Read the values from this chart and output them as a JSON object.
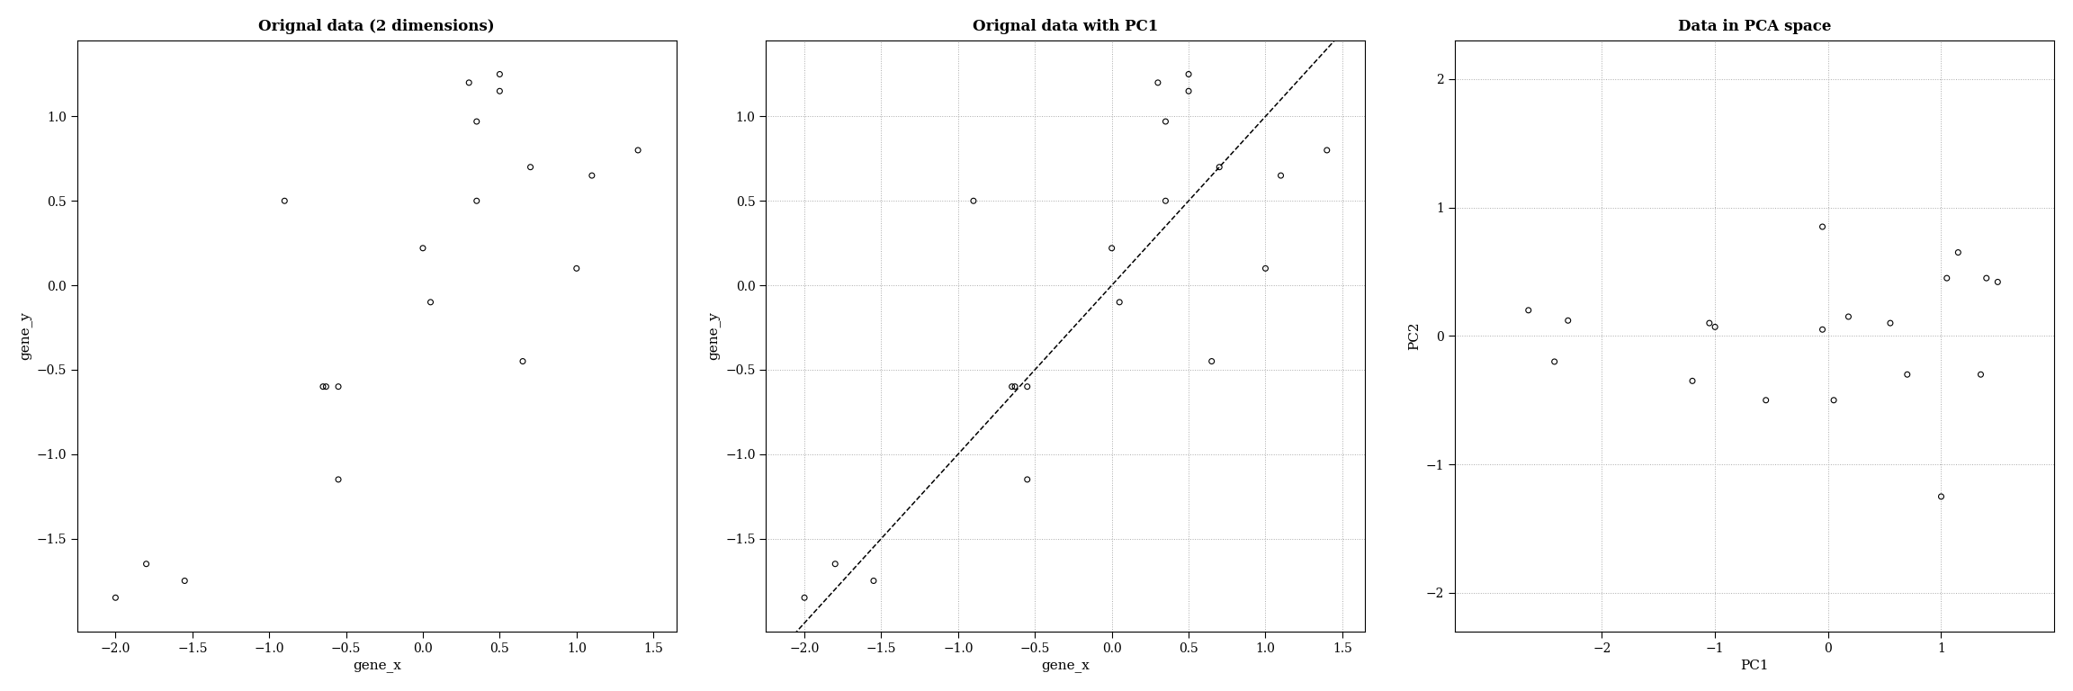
{
  "plot1": {
    "title": "Orignal data (2 dimensions)",
    "xlabel": "gene_x",
    "ylabel": "gene_y",
    "x": [
      -2.0,
      -1.8,
      -1.55,
      -0.9,
      -0.65,
      -0.63,
      -0.55,
      -0.55,
      0.0,
      0.05,
      0.3,
      0.35,
      0.35,
      0.5,
      0.5,
      0.65,
      0.7,
      1.0,
      1.1,
      1.4
    ],
    "y": [
      -1.85,
      -1.65,
      -1.75,
      0.5,
      -0.6,
      -0.6,
      -0.6,
      -1.15,
      0.22,
      -0.1,
      1.2,
      0.97,
      0.5,
      1.25,
      1.15,
      -0.45,
      0.7,
      0.1,
      0.65,
      0.8
    ],
    "xlim": [
      -2.25,
      1.65
    ],
    "ylim": [
      -2.05,
      1.45
    ],
    "xticks": [
      -2.0,
      -1.5,
      -1.0,
      -0.5,
      0.0,
      0.5,
      1.0,
      1.5
    ],
    "yticks": [
      -1.5,
      -1.0,
      -0.5,
      0.0,
      0.5,
      1.0
    ],
    "grid": false
  },
  "plot2": {
    "title": "Orignal data with PC1",
    "xlabel": "gene_x",
    "ylabel": "gene_y",
    "x": [
      -2.0,
      -1.8,
      -1.55,
      -0.9,
      -0.65,
      -0.63,
      -0.55,
      -0.55,
      0.0,
      0.05,
      0.3,
      0.35,
      0.35,
      0.5,
      0.5,
      0.65,
      0.7,
      1.0,
      1.1,
      1.4
    ],
    "y": [
      -1.85,
      -1.65,
      -1.75,
      0.5,
      -0.6,
      -0.6,
      -0.6,
      -1.15,
      0.22,
      -0.1,
      1.2,
      0.97,
      0.5,
      1.25,
      1.15,
      -0.45,
      0.7,
      0.1,
      0.65,
      0.8
    ],
    "line_x": [
      -2.1,
      1.55
    ],
    "line_y": [
      -2.1,
      1.55
    ],
    "xlim": [
      -2.25,
      1.65
    ],
    "ylim": [
      -2.05,
      1.45
    ],
    "xticks": [
      -2.0,
      -1.5,
      -1.0,
      -0.5,
      0.0,
      0.5,
      1.0,
      1.5
    ],
    "yticks": [
      -1.5,
      -1.0,
      -0.5,
      0.0,
      0.5,
      1.0
    ],
    "grid": true
  },
  "plot3": {
    "title": "Data in PCA space",
    "xlabel": "PC1",
    "ylabel": "PC2",
    "x": [
      -2.65,
      -2.3,
      -2.42,
      -1.2,
      -1.05,
      -1.0,
      -0.55,
      -0.05,
      -0.05,
      0.05,
      0.18,
      0.55,
      0.7,
      1.0,
      1.05,
      1.15,
      1.35,
      1.4,
      1.5
    ],
    "y": [
      0.2,
      0.12,
      -0.2,
      -0.35,
      0.1,
      0.07,
      -0.5,
      0.85,
      0.05,
      -0.5,
      0.15,
      0.1,
      -0.3,
      -1.25,
      0.45,
      0.65,
      -0.3,
      0.45,
      0.42
    ],
    "xlim": [
      -3.3,
      2.0
    ],
    "ylim": [
      -2.3,
      2.3
    ],
    "xticks": [
      -2.0,
      -1.0,
      0.0,
      1.0
    ],
    "yticks": [
      -2.0,
      -1.0,
      0.0,
      1.0,
      2.0
    ],
    "grid": true
  },
  "bg_color": "#ffffff",
  "marker_color": "black",
  "marker_size": 18,
  "grid_color": "#aaaaaa",
  "grid_linestyle": ":",
  "grid_linewidth": 0.7,
  "title_fontsize": 12,
  "label_fontsize": 11,
  "tick_fontsize": 10
}
